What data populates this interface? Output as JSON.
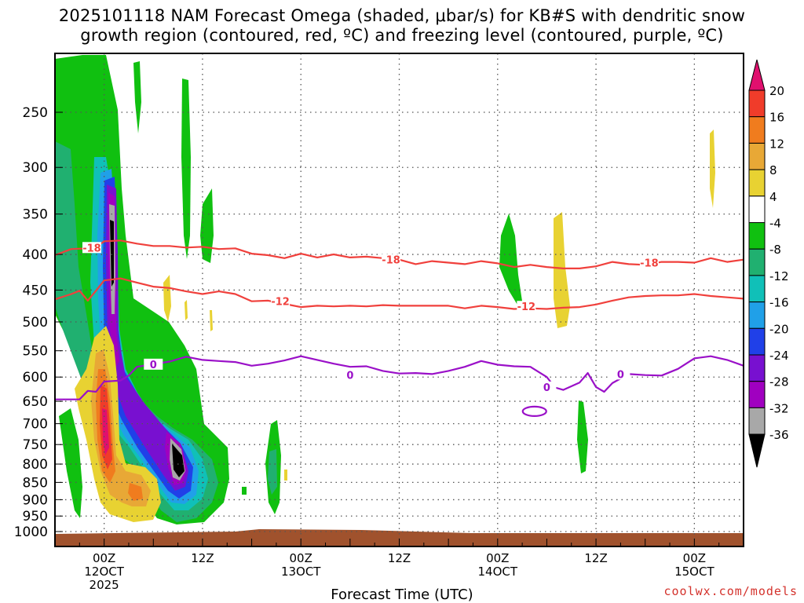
{
  "title_line1": "2025101118 NAM Forecast Omega (shaded, μbar/s) for KB#S with dendritic snow",
  "title_line2": "growth region (contoured, red, ºC) and freezing level (contoured, purple, ºC)",
  "x_axis_title": "Forecast Time (UTC)",
  "credit": "coolwx.com/models",
  "chart_data": {
    "type": "time-height",
    "y_scale": "pressure (hPa), inverted",
    "y_ticks": [
      250,
      300,
      350,
      400,
      450,
      500,
      550,
      600,
      650,
      700,
      750,
      800,
      850,
      900,
      950,
      1000
    ],
    "x_ticks": [
      {
        "hour": 6,
        "line1": "00Z",
        "line2": "12OCT",
        "line3": "2025"
      },
      {
        "hour": 18,
        "line1": "12Z",
        "line2": "",
        "line3": ""
      },
      {
        "hour": 30,
        "line1": "00Z",
        "line2": "13OCT",
        "line3": ""
      },
      {
        "hour": 42,
        "line1": "12Z",
        "line2": "",
        "line3": ""
      },
      {
        "hour": 54,
        "line1": "00Z",
        "line2": "14OCT",
        "line3": ""
      },
      {
        "hour": 66,
        "line1": "12Z",
        "line2": "",
        "line3": ""
      },
      {
        "hour": 78,
        "line1": "00Z",
        "line2": "15OCT",
        "line3": ""
      }
    ],
    "x_range_hours": [
      0,
      84
    ],
    "y_range_hpa": [
      200,
      1020
    ],
    "colorbar": {
      "labels": [
        "20",
        "16",
        "12",
        "8",
        "4",
        "-4",
        "-8",
        "-12",
        "-16",
        "-20",
        "-24",
        "-28",
        "-32",
        "-36"
      ],
      "colors": [
        "#e0106e",
        "#f03c2a",
        "#f07c1e",
        "#e8a836",
        "#e8d232",
        "#ffffff",
        "#10c010",
        "#20b070",
        "#10c0b8",
        "#20a0e8",
        "#2040e8",
        "#7810d0",
        "#a000c0",
        "#a8a8a8",
        "#000000"
      ]
    },
    "contour_labels": {
      "dgz_top": "-18",
      "dgz_bottom": "-12",
      "freezing": "0"
    },
    "dgz_top_line": [
      [
        0,
        401
      ],
      [
        2,
        393
      ],
      [
        4,
        392
      ],
      [
        5,
        391
      ],
      [
        6,
        383
      ],
      [
        8,
        382
      ],
      [
        10,
        386
      ],
      [
        12,
        389
      ],
      [
        14,
        389
      ],
      [
        16,
        391
      ],
      [
        18,
        390
      ],
      [
        20,
        393
      ],
      [
        22,
        392
      ],
      [
        24,
        399
      ],
      [
        26,
        401
      ],
      [
        28,
        405
      ],
      [
        30,
        399
      ],
      [
        32,
        404
      ],
      [
        34,
        400
      ],
      [
        36,
        404
      ],
      [
        38,
        403
      ],
      [
        40,
        405
      ],
      [
        42,
        407
      ],
      [
        44,
        413
      ],
      [
        46,
        409
      ],
      [
        48,
        411
      ],
      [
        50,
        413
      ],
      [
        52,
        409
      ],
      [
        54,
        412
      ],
      [
        56,
        417
      ],
      [
        58,
        414
      ],
      [
        60,
        417
      ],
      [
        62,
        419
      ],
      [
        64,
        419
      ],
      [
        66,
        416
      ],
      [
        68,
        410
      ],
      [
        70,
        413
      ],
      [
        72,
        414
      ],
      [
        74,
        410
      ],
      [
        76,
        410
      ],
      [
        78,
        411
      ],
      [
        80,
        405
      ],
      [
        82,
        410
      ],
      [
        84,
        407
      ]
    ],
    "dgz_bottom_line": [
      [
        0,
        464
      ],
      [
        2,
        456
      ],
      [
        3,
        451
      ],
      [
        4,
        466
      ],
      [
        5,
        451
      ],
      [
        6,
        436
      ],
      [
        8,
        433
      ],
      [
        10,
        439
      ],
      [
        12,
        445
      ],
      [
        14,
        447
      ],
      [
        16,
        452
      ],
      [
        18,
        456
      ],
      [
        20,
        452
      ],
      [
        22,
        456
      ],
      [
        24,
        467
      ],
      [
        26,
        466
      ],
      [
        28,
        471
      ],
      [
        30,
        476
      ],
      [
        32,
        474
      ],
      [
        34,
        475
      ],
      [
        36,
        474
      ],
      [
        38,
        475
      ],
      [
        40,
        473
      ],
      [
        42,
        474
      ],
      [
        44,
        474
      ],
      [
        46,
        474
      ],
      [
        48,
        474
      ],
      [
        50,
        478
      ],
      [
        52,
        474
      ],
      [
        54,
        476
      ],
      [
        56,
        479
      ],
      [
        58,
        478
      ],
      [
        60,
        479
      ],
      [
        62,
        477
      ],
      [
        64,
        476
      ],
      [
        66,
        472
      ],
      [
        68,
        466
      ],
      [
        70,
        461
      ],
      [
        72,
        459
      ],
      [
        74,
        458
      ],
      [
        76,
        458
      ],
      [
        78,
        456
      ],
      [
        80,
        459
      ],
      [
        82,
        461
      ],
      [
        84,
        463
      ]
    ],
    "freezing_line": [
      [
        0,
        646
      ],
      [
        3,
        646
      ],
      [
        4,
        628
      ],
      [
        5,
        630
      ],
      [
        6,
        609
      ],
      [
        8,
        607
      ],
      [
        9,
        597
      ],
      [
        10,
        580
      ],
      [
        12,
        575
      ],
      [
        14,
        570
      ],
      [
        16,
        561
      ],
      [
        18,
        567
      ],
      [
        20,
        569
      ],
      [
        22,
        571
      ],
      [
        24,
        578
      ],
      [
        26,
        574
      ],
      [
        28,
        568
      ],
      [
        30,
        560
      ],
      [
        32,
        567
      ],
      [
        34,
        574
      ],
      [
        36,
        580
      ],
      [
        38,
        579
      ],
      [
        40,
        588
      ],
      [
        42,
        593
      ],
      [
        44,
        592
      ],
      [
        46,
        594
      ],
      [
        48,
        588
      ],
      [
        50,
        580
      ],
      [
        52,
        569
      ],
      [
        54,
        576
      ],
      [
        56,
        579
      ],
      [
        58,
        580
      ],
      [
        60,
        600
      ],
      [
        61,
        621
      ],
      [
        62,
        626
      ],
      [
        64,
        611
      ],
      [
        65,
        592
      ],
      [
        66,
        620
      ],
      [
        67,
        630
      ],
      [
        68,
        612
      ],
      [
        70,
        594
      ],
      [
        72,
        596
      ],
      [
        74,
        597
      ],
      [
        76,
        584
      ],
      [
        78,
        564
      ],
      [
        80,
        560
      ],
      [
        82,
        567
      ],
      [
        84,
        578
      ]
    ]
  }
}
